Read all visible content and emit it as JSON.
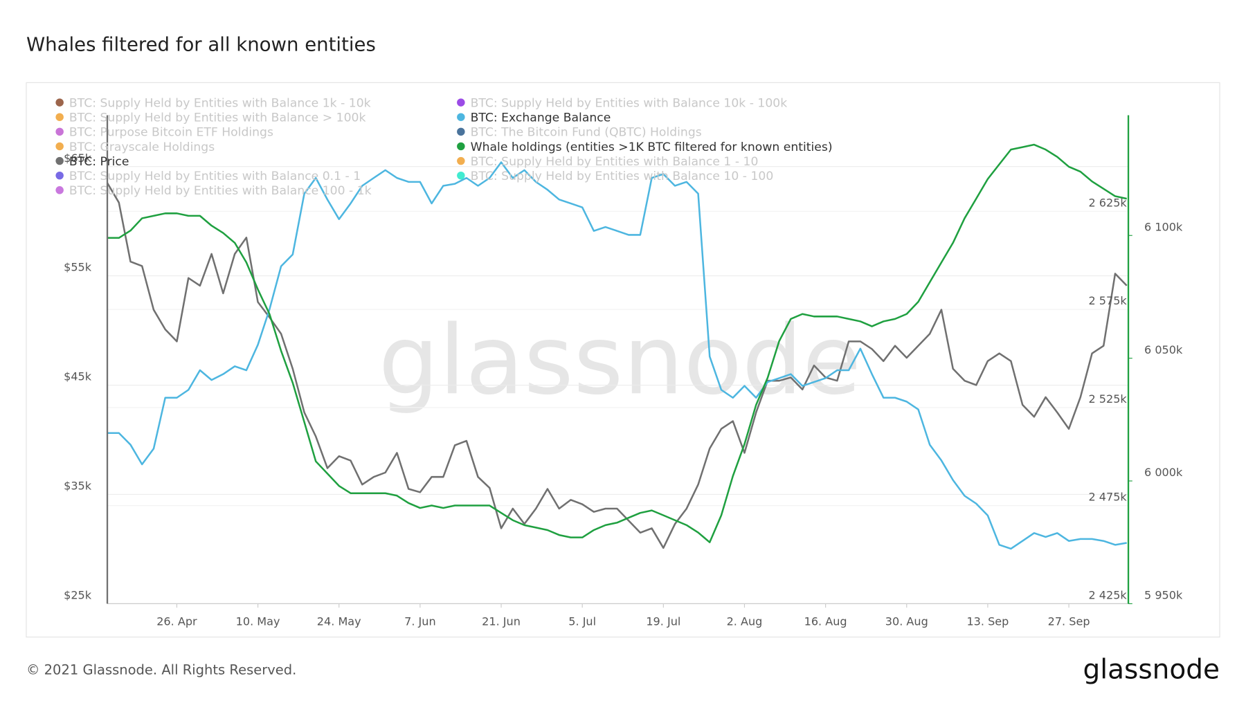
{
  "chart_data": {
    "type": "line",
    "title": "Whales filtered for all known entities",
    "watermark": "glassnode",
    "copyright": "© 2021 Glassnode. All Rights Reserved.",
    "logo": "glassnode",
    "categories": [
      null,
      null,
      null,
      null,
      null,
      null,
      "26. Apr",
      null,
      null,
      null,
      null,
      null,
      null,
      "10. May",
      null,
      null,
      null,
      null,
      null,
      null,
      "24. May",
      null,
      null,
      null,
      null,
      null,
      null,
      "7. Jun",
      null,
      null,
      null,
      null,
      null,
      null,
      "21. Jun",
      null,
      null,
      null,
      null,
      null,
      null,
      "5. Jul",
      null,
      null,
      null,
      null,
      null,
      null,
      "19. Jul",
      null,
      null,
      null,
      null,
      null,
      null,
      "2. Aug",
      null,
      null,
      null,
      null,
      null,
      null,
      "16. Aug",
      null,
      null,
      null,
      null,
      null,
      null,
      "30. Aug",
      null,
      null,
      null,
      null,
      null,
      null,
      "13. Sep",
      null,
      null,
      null,
      null,
      null,
      null,
      "27. Sep",
      null,
      null,
      null,
      null,
      null
    ],
    "ylim": [
      25000,
      69700
    ],
    "yticks": [
      {
        "value": 25000,
        "label": "$25k"
      },
      {
        "value": 35000,
        "label": "$35k"
      },
      {
        "value": 45000,
        "label": "$45k"
      },
      {
        "value": 55000,
        "label": "$55k"
      },
      {
        "value": 65000,
        "label": "$65k"
      }
    ],
    "y2lim": [
      2425000,
      2674000
    ],
    "y2ticks": [
      {
        "value": 2425000,
        "label": "2 425k"
      },
      {
        "value": 2475000,
        "label": "2 475k"
      },
      {
        "value": 2525000,
        "label": "2 525k"
      },
      {
        "value": 2575000,
        "label": "2 575k"
      },
      {
        "value": 2625000,
        "label": "2 625k"
      }
    ],
    "y3lim": [
      5950000,
      6149000
    ],
    "y3ticks": [
      {
        "value": 5950000,
        "label": "5 950k"
      },
      {
        "value": 6000000,
        "label": "6 000k"
      },
      {
        "value": 6050000,
        "label": "6 050k"
      },
      {
        "value": 6100000,
        "label": "6 100k"
      }
    ],
    "grid": true,
    "series": [
      {
        "name": "BTC: Supply Held by Entities with Balance 1k - 10k",
        "color": "#8b4a2b",
        "hidden": true
      },
      {
        "name": "BTC: Supply Held by Entities with Balance > 100k",
        "color": "#f0a030",
        "hidden": true
      },
      {
        "name": "BTC: Purpose Bitcoin ETF Holdings",
        "color": "#c05cd0",
        "hidden": true
      },
      {
        "name": "BTC: Grayscale Holdings",
        "color": "#f0a030",
        "hidden": true
      },
      {
        "name": "BTC: Price",
        "color": "#707070",
        "axis": "y",
        "values": [
          63500,
          61700,
          56300,
          55900,
          51900,
          50100,
          49000,
          54800,
          54100,
          57000,
          53400,
          57000,
          58500,
          52600,
          51200,
          49700,
          46500,
          42500,
          40300,
          37400,
          38500,
          38100,
          35900,
          36600,
          37000,
          38800,
          35500,
          35200,
          36600,
          36600,
          39500,
          39900,
          36600,
          35600,
          31900,
          33700,
          32300,
          33700,
          35500,
          33700,
          34500,
          34100,
          33400,
          33700,
          33700,
          32600,
          31500,
          31900,
          30100,
          32300,
          33700,
          35900,
          39200,
          41000,
          41700,
          38800,
          42500,
          45400,
          45400,
          45700,
          44600,
          46800,
          45700,
          45400,
          49000,
          49000,
          48300,
          47200,
          48600,
          47500,
          48600,
          49700,
          51900,
          46500,
          45400,
          45000,
          47200,
          47900,
          47200,
          43200,
          42100,
          43900,
          42500,
          41000,
          43900,
          47900,
          48600,
          55200,
          54100
        ]
      },
      {
        "name": "BTC: Supply Held by Entities with Balance 0.1 - 1",
        "color": "#6050e0",
        "hidden": true
      },
      {
        "name": "BTC: Supply Held by Entities with Balance 100 - 1k",
        "color": "#c060d8",
        "hidden": true
      },
      {
        "name": "BTC: Supply Held by Entities with Balance 10k - 100k",
        "color": "#8a2be2",
        "hidden": true
      },
      {
        "name": "BTC: Exchange Balance",
        "color": "#4db6e0",
        "axis": "y2",
        "values": [
          2512000,
          2512000,
          2506000,
          2496000,
          2504000,
          2530000,
          2530000,
          2534000,
          2544000,
          2539000,
          2542000,
          2546000,
          2544000,
          2557000,
          2575000,
          2597000,
          2603000,
          2634000,
          2642000,
          2631000,
          2621000,
          2629000,
          2638000,
          2642000,
          2646000,
          2642000,
          2640000,
          2640000,
          2629000,
          2638000,
          2639000,
          2642000,
          2638000,
          2642000,
          2650000,
          2642000,
          2646000,
          2640000,
          2636000,
          2631000,
          2629000,
          2627000,
          2615000,
          2617000,
          2615000,
          2613000,
          2613000,
          2642000,
          2644000,
          2638000,
          2640000,
          2634000,
          2551000,
          2534000,
          2530000,
          2536000,
          2530000,
          2538000,
          2540000,
          2542000,
          2536000,
          2538000,
          2540000,
          2544000,
          2544000,
          2555000,
          2542000,
          2530000,
          2530000,
          2528000,
          2524000,
          2506000,
          2498000,
          2488000,
          2480000,
          2476000,
          2470000,
          2455000,
          2453000,
          2457000,
          2461000,
          2459000,
          2461000,
          2457000,
          2458000,
          2458000,
          2457000,
          2455000,
          2456000
        ]
      },
      {
        "name": "BTC: The Bitcoin Fund (QBTC) Holdings",
        "color": "#2a5a8a",
        "hidden": true
      },
      {
        "name": "Whale holdings (entities >1K BTC filtered for known entities)",
        "color": "#1fa040",
        "axis": "y3",
        "values": [
          6099000,
          6099000,
          6102000,
          6107000,
          6108000,
          6109000,
          6109000,
          6108000,
          6108000,
          6104000,
          6101000,
          6097000,
          6089000,
          6078000,
          6068000,
          6053000,
          6040000,
          6024000,
          6008000,
          6003000,
          5998000,
          5995000,
          5995000,
          5995000,
          5995000,
          5994000,
          5991000,
          5989000,
          5990000,
          5989000,
          5990000,
          5990000,
          5990000,
          5990000,
          5987000,
          5984000,
          5982000,
          5981000,
          5980000,
          5978000,
          5977000,
          5977000,
          5980000,
          5982000,
          5983000,
          5985000,
          5987000,
          5988000,
          5986000,
          5984000,
          5982000,
          5979000,
          5975000,
          5986000,
          6002000,
          6015000,
          6031000,
          6042000,
          6057000,
          6066000,
          6068000,
          6067000,
          6067000,
          6067000,
          6066000,
          6065000,
          6063000,
          6065000,
          6066000,
          6068000,
          6073000,
          6081000,
          6089000,
          6097000,
          6107000,
          6115000,
          6123000,
          6129000,
          6135000,
          6136000,
          6137000,
          6135000,
          6132000,
          6128000,
          6126000,
          6122000,
          6119000,
          6116000,
          6115000
        ]
      },
      {
        "name": "BTC: Supply Held by Entities with Balance 1 - 10",
        "color": "#f0a030",
        "hidden": true
      },
      {
        "name": "BTC: Supply Held by Entities with Balance 10 - 100",
        "color": "#20e8c8",
        "hidden": true
      }
    ]
  }
}
